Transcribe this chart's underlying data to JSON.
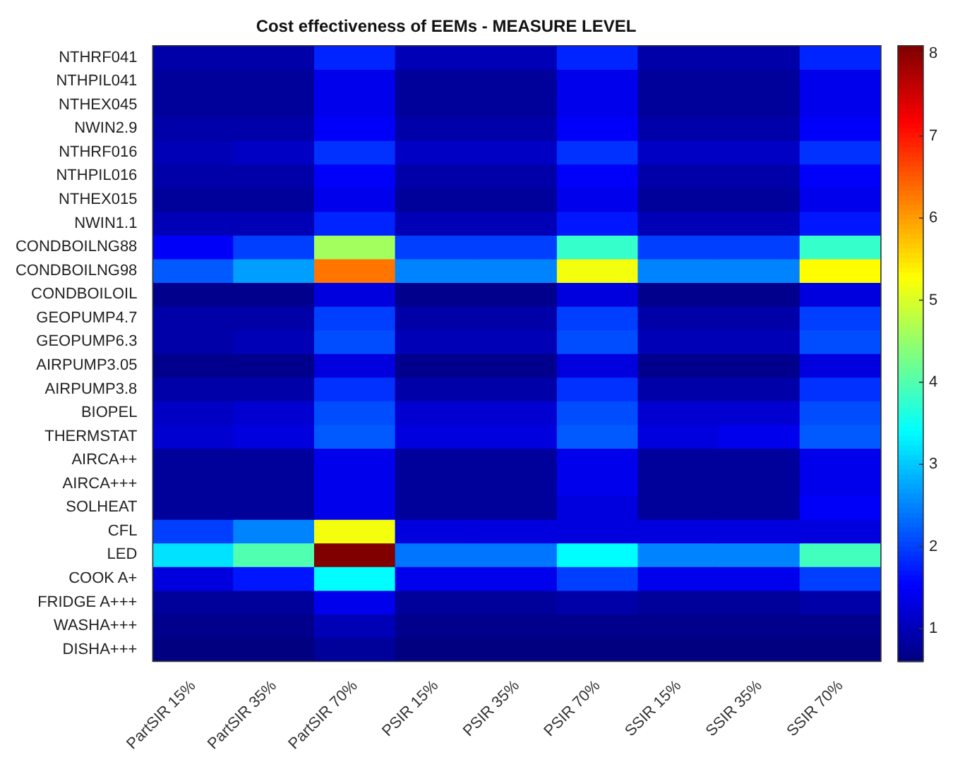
{
  "chart_data": {
    "type": "heatmap",
    "title": "Cost effectiveness of EEMs - MEASURE LEVEL",
    "categories": [
      "PartSIR 15%",
      "PartSIR 35%",
      "PartSIR 70%",
      "PSIR 15%",
      "PSIR 35%",
      "PSIR 70%",
      "SSIR 15%",
      "SSIR 35%",
      "SSIR 70%"
    ],
    "y_categories": [
      "NTHRF041",
      "NTHPIL041",
      "NTHEX045",
      "NWIN2.9",
      "NTHRF016",
      "NTHPIL016",
      "NTHEX015",
      "NWIN1.1",
      "CONDBOILNG88",
      "CONDBOILNG98",
      "CONDBOILOIL",
      "GEOPUMP4.7",
      "GEOPUMP6.3",
      "AIRPUMP3.05",
      "AIRPUMP3.8",
      "BIOPEL",
      "THERMSTAT",
      "AIRCA++",
      "AIRCA+++",
      "SOLHEAT",
      "CFL",
      "LED",
      "COOK A+",
      "FRIDGE A+++",
      "WASHA+++",
      "DISHA+++"
    ],
    "cells": [
      [
        0.9,
        0.9,
        1.8,
        1.0,
        1.0,
        1.8,
        0.9,
        0.9,
        1.8
      ],
      [
        0.8,
        0.8,
        1.4,
        0.8,
        0.8,
        1.4,
        0.8,
        0.8,
        1.4
      ],
      [
        0.8,
        0.8,
        1.4,
        0.8,
        0.8,
        1.4,
        0.8,
        0.8,
        1.4
      ],
      [
        0.9,
        0.9,
        1.5,
        0.9,
        0.9,
        1.5,
        0.9,
        0.9,
        1.5
      ],
      [
        1.0,
        1.1,
        1.9,
        1.1,
        1.1,
        1.9,
        1.1,
        1.1,
        1.9
      ],
      [
        0.9,
        0.9,
        1.5,
        0.9,
        0.9,
        1.5,
        0.9,
        0.9,
        1.5
      ],
      [
        0.8,
        0.8,
        1.4,
        0.8,
        0.8,
        1.4,
        0.8,
        0.8,
        1.4
      ],
      [
        1.0,
        1.0,
        1.8,
        1.0,
        1.0,
        1.7,
        1.0,
        1.0,
        1.7
      ],
      [
        1.5,
        2.0,
        4.6,
        2.0,
        2.0,
        3.8,
        2.0,
        2.0,
        3.8
      ],
      [
        2.2,
        2.7,
        6.3,
        2.5,
        2.5,
        5.2,
        2.5,
        2.5,
        5.3
      ],
      [
        0.7,
        0.7,
        1.3,
        0.7,
        0.7,
        1.3,
        0.7,
        0.7,
        1.3
      ],
      [
        0.9,
        0.9,
        2.0,
        0.9,
        0.9,
        2.0,
        0.9,
        0.9,
        2.0
      ],
      [
        0.9,
        1.0,
        2.1,
        1.0,
        1.0,
        2.1,
        1.0,
        1.0,
        2.1
      ],
      [
        0.7,
        0.7,
        1.3,
        0.7,
        0.7,
        1.3,
        0.7,
        0.7,
        1.3
      ],
      [
        0.9,
        0.9,
        1.9,
        0.9,
        0.9,
        1.9,
        0.9,
        0.9,
        1.9
      ],
      [
        1.1,
        1.2,
        2.1,
        1.2,
        1.2,
        2.1,
        1.2,
        1.2,
        2.1
      ],
      [
        1.2,
        1.3,
        2.2,
        1.3,
        1.3,
        2.2,
        1.3,
        1.4,
        2.2
      ],
      [
        0.8,
        0.8,
        1.4,
        0.8,
        0.8,
        1.4,
        0.8,
        0.8,
        1.4
      ],
      [
        0.8,
        0.8,
        1.4,
        0.8,
        0.8,
        1.4,
        0.8,
        0.8,
        1.4
      ],
      [
        0.8,
        0.8,
        1.4,
        0.8,
        0.8,
        1.3,
        0.8,
        0.8,
        1.5
      ],
      [
        2.0,
        2.5,
        5.2,
        1.3,
        1.3,
        1.3,
        1.3,
        1.3,
        1.3
      ],
      [
        3.2,
        4.0,
        8.1,
        2.4,
        2.4,
        3.4,
        2.5,
        2.5,
        3.9
      ],
      [
        1.3,
        1.7,
        3.4,
        1.4,
        1.4,
        2.0,
        1.4,
        1.4,
        2.0
      ],
      [
        0.8,
        0.8,
        1.4,
        0.8,
        0.8,
        0.9,
        0.8,
        0.8,
        0.9
      ],
      [
        0.7,
        0.7,
        1.0,
        0.7,
        0.7,
        0.7,
        0.7,
        0.7,
        0.7
      ],
      [
        0.6,
        0.6,
        0.8,
        0.6,
        0.6,
        0.6,
        0.6,
        0.6,
        0.6
      ]
    ],
    "clim": [
      0.6,
      8.1
    ],
    "cticks": [
      1,
      2,
      3,
      4,
      5,
      6,
      7,
      8
    ],
    "grid": false
  }
}
